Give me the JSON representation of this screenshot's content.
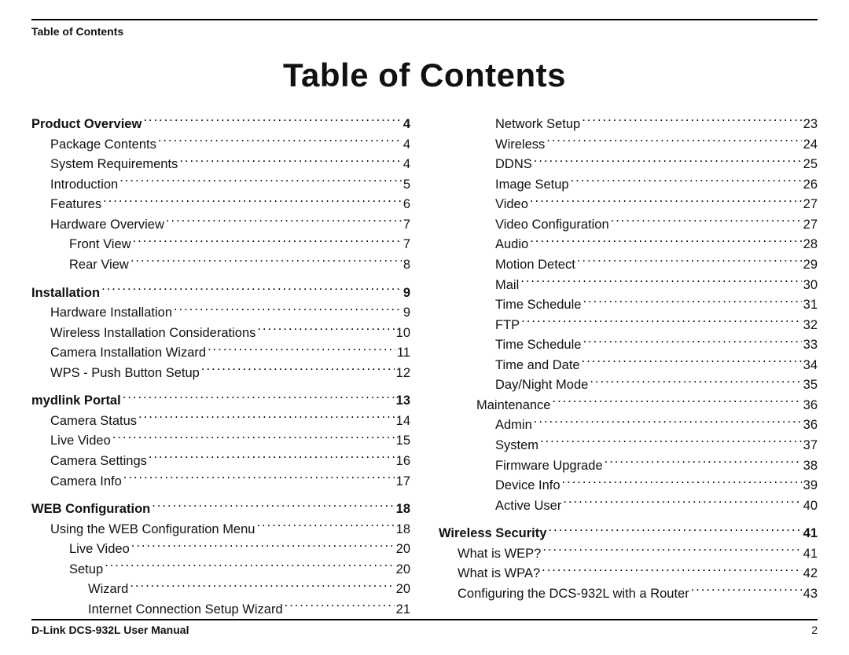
{
  "header": {
    "section_label": "Table of Contents"
  },
  "title": "Table of Contents",
  "footer": {
    "manual_label": "D-Link DCS-932L User Manual",
    "page_number": "2"
  },
  "columns": [
    [
      {
        "level": 0,
        "label": "Product Overview",
        "page": "4"
      },
      {
        "level": 1,
        "label": "Package Contents",
        "page": "4"
      },
      {
        "level": 1,
        "label": "System Requirements",
        "page": "4"
      },
      {
        "level": 1,
        "label": "Introduction",
        "page": "5"
      },
      {
        "level": 1,
        "label": "Features",
        "page": "6"
      },
      {
        "level": 1,
        "label": "Hardware Overview",
        "page": "7"
      },
      {
        "level": 2,
        "label": "Front View",
        "page": "7"
      },
      {
        "level": 2,
        "label": "Rear View",
        "page": "8"
      },
      {
        "level": 0,
        "label": "Installation",
        "page": "9"
      },
      {
        "level": 1,
        "label": "Hardware Installation",
        "page": "9"
      },
      {
        "level": 1,
        "label": "Wireless Installation Considerations",
        "page": "10"
      },
      {
        "level": 1,
        "label": "Camera Installation Wizard",
        "page": "11"
      },
      {
        "level": 1,
        "label": "WPS - Push Button Setup",
        "page": "12"
      },
      {
        "level": 0,
        "label": "mydlink Portal",
        "page": "13"
      },
      {
        "level": 1,
        "label": "Camera Status",
        "page": "14"
      },
      {
        "level": 1,
        "label": "Live Video",
        "page": "15"
      },
      {
        "level": 1,
        "label": "Camera Settings",
        "page": "16"
      },
      {
        "level": 1,
        "label": "Camera Info",
        "page": "17"
      },
      {
        "level": 0,
        "label": "WEB Configuration",
        "page": "18"
      },
      {
        "level": 1,
        "label": "Using the WEB Configuration Menu",
        "page": "18"
      },
      {
        "level": 2,
        "label": "Live Video",
        "page": "20"
      },
      {
        "level": 2,
        "label": "Setup",
        "page": "20"
      },
      {
        "level": 3,
        "label": "Wizard",
        "page": "20"
      },
      {
        "level": 3,
        "label": "Internet Connection Setup Wizard",
        "page": "21"
      }
    ],
    [
      {
        "level": 3,
        "label": "Network Setup",
        "page": "23"
      },
      {
        "level": 3,
        "label": "Wireless",
        "page": "24"
      },
      {
        "level": 3,
        "label": "DDNS",
        "page": "25"
      },
      {
        "level": 3,
        "label": "Image Setup",
        "page": "26"
      },
      {
        "level": 3,
        "label": "Video",
        "page": "27"
      },
      {
        "level": 3,
        "label": "Video Configuration",
        "page": "27"
      },
      {
        "level": 3,
        "label": "Audio",
        "page": "28"
      },
      {
        "level": 3,
        "label": "Motion Detect",
        "page": "29"
      },
      {
        "level": 3,
        "label": "Mail",
        "page": "30"
      },
      {
        "level": 3,
        "label": "Time Schedule",
        "page": "31"
      },
      {
        "level": 3,
        "label": "FTP",
        "page": "32"
      },
      {
        "level": 3,
        "label": "Time Schedule",
        "page": "33"
      },
      {
        "level": 3,
        "label": "Time and Date",
        "page": "34"
      },
      {
        "level": 3,
        "label": "Day/Night Mode",
        "page": "35"
      },
      {
        "level": 2,
        "label": "Maintenance",
        "page": "36"
      },
      {
        "level": 3,
        "label": "Admin",
        "page": "36"
      },
      {
        "level": 3,
        "label": "System",
        "page": "37"
      },
      {
        "level": 3,
        "label": "Firmware Upgrade",
        "page": "38"
      },
      {
        "level": 3,
        "label": "Device Info",
        "page": "39"
      },
      {
        "level": 3,
        "label": "Active User",
        "page": "40"
      },
      {
        "level": 0,
        "label": "Wireless Security",
        "page": "41"
      },
      {
        "level": 1,
        "label": "What is WEP?",
        "page": "41"
      },
      {
        "level": 1,
        "label": "What is WPA?",
        "page": "42"
      },
      {
        "level": 1,
        "label": "Configuring the DCS-932L with a Router",
        "page": "43"
      }
    ]
  ]
}
